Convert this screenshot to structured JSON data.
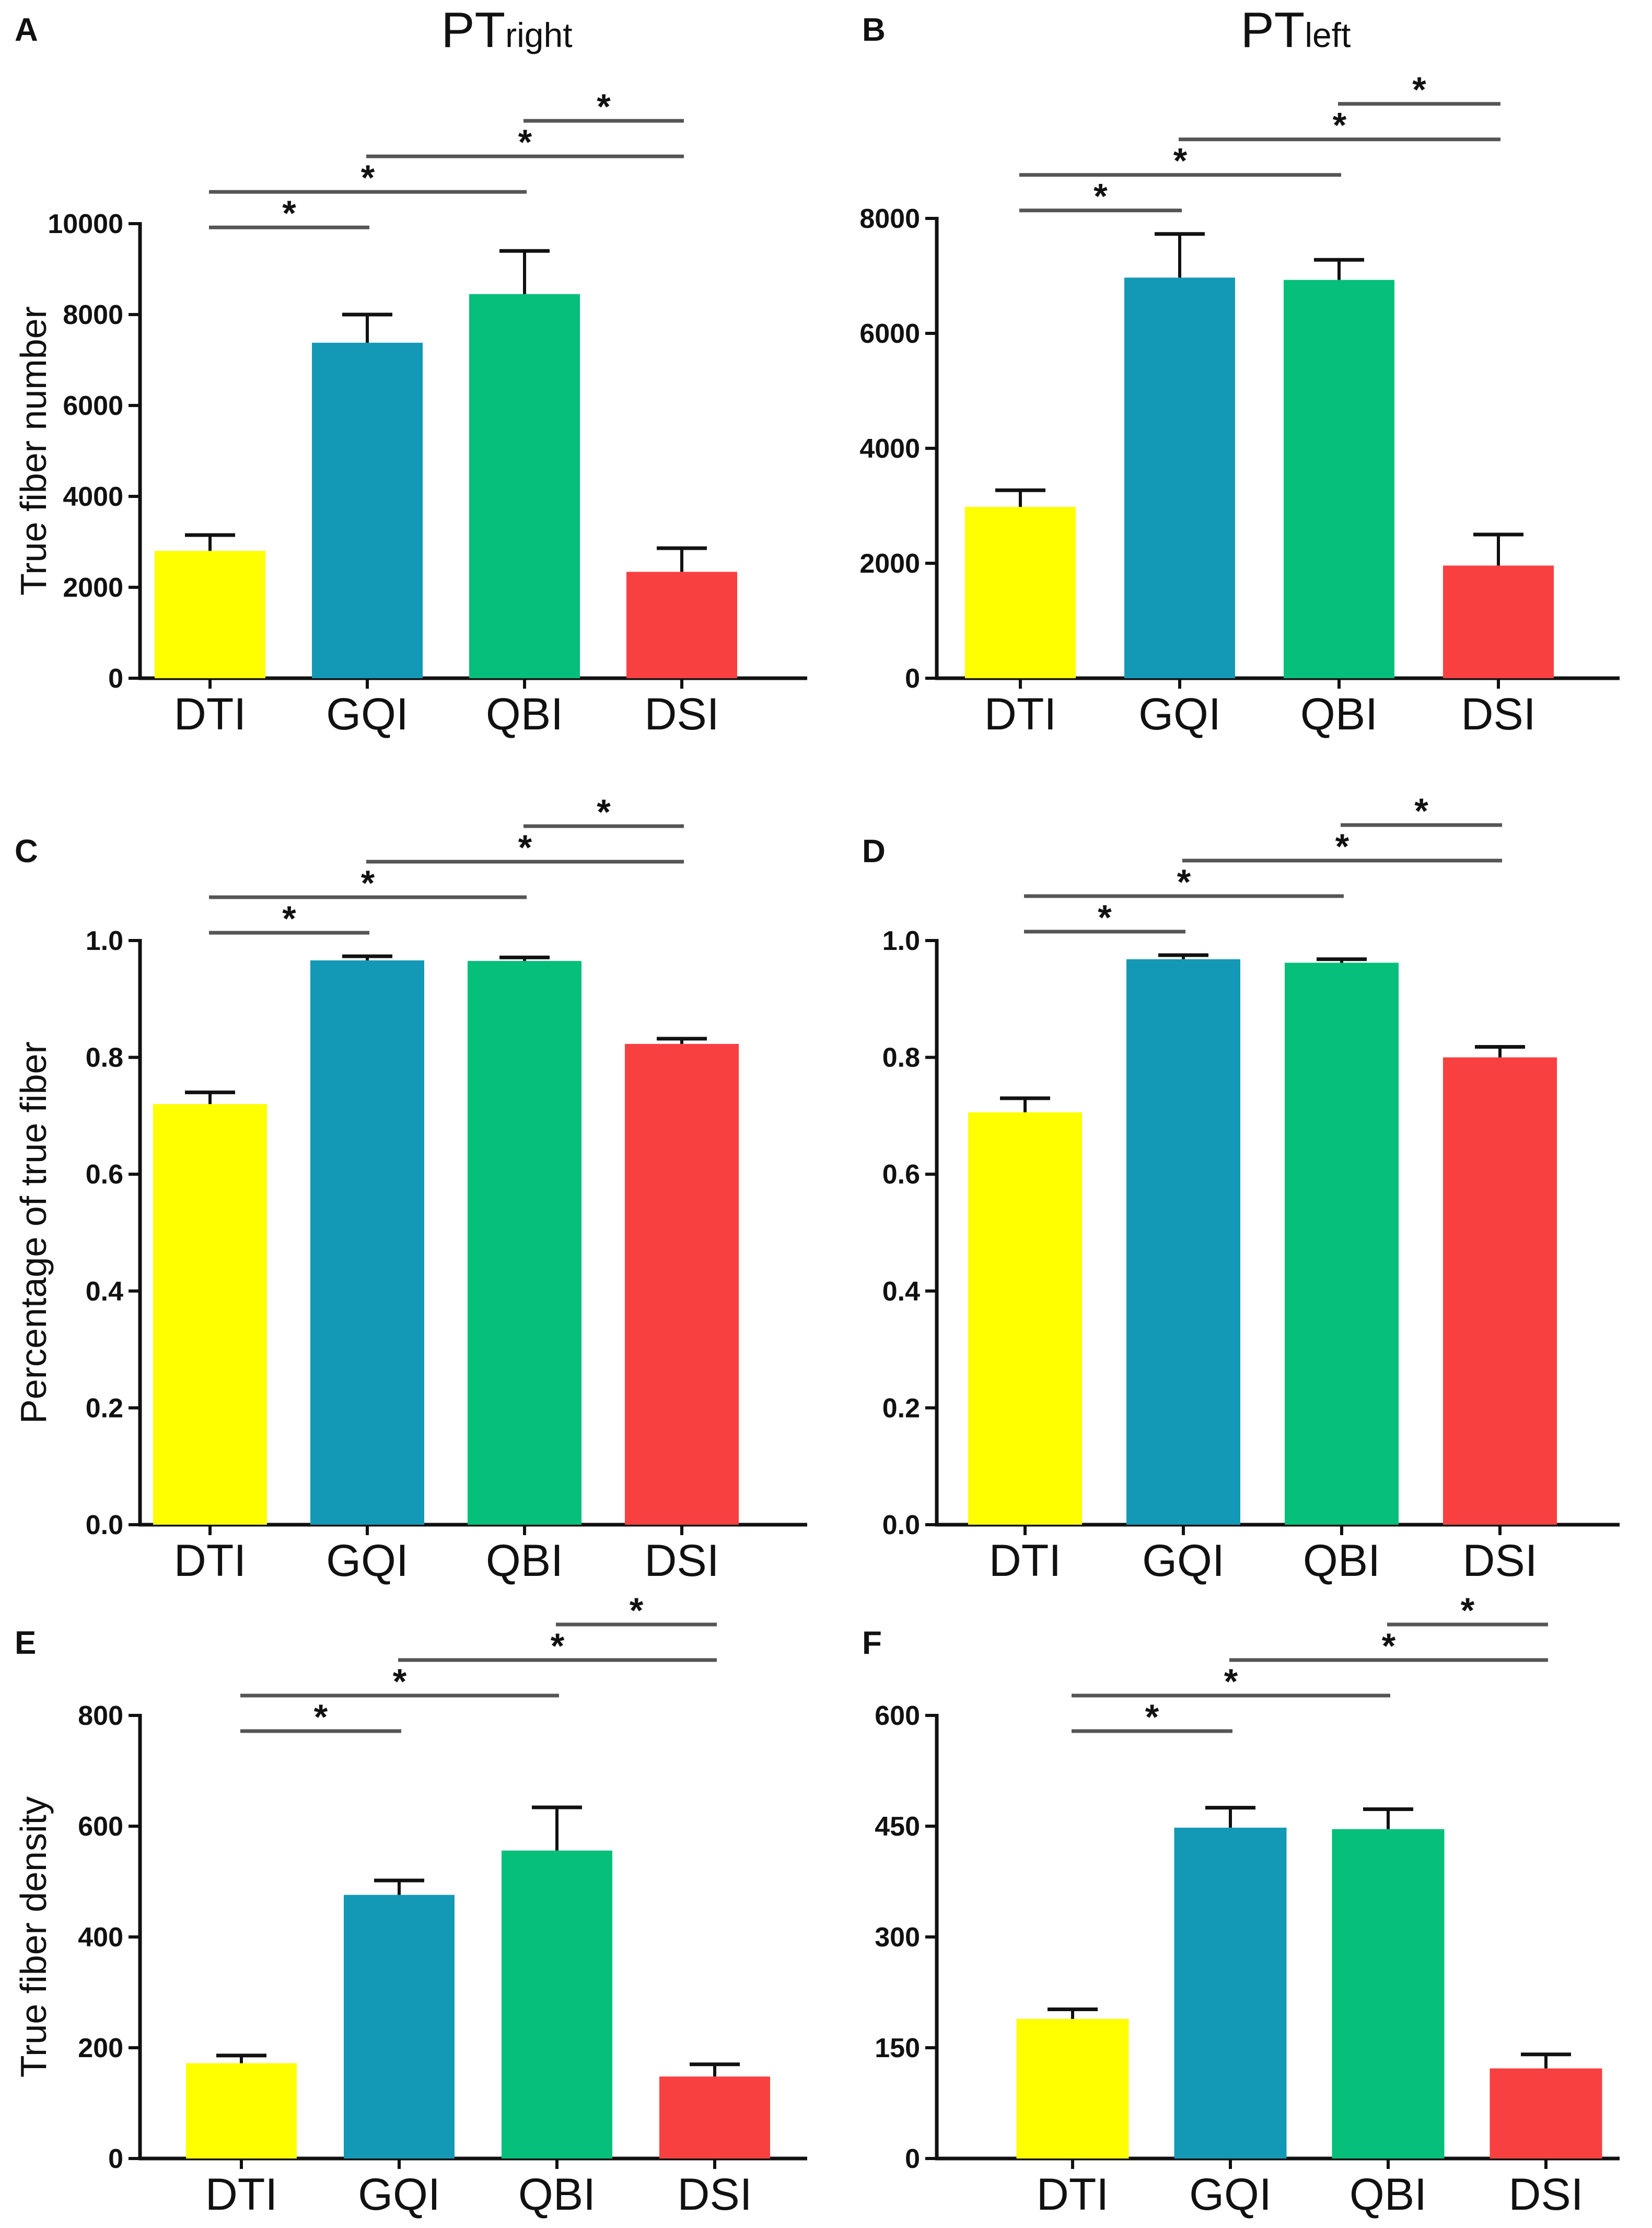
{
  "figure": {
    "columns": [
      {
        "main": "PT",
        "sub": "right"
      },
      {
        "main": "PT",
        "sub": "left"
      }
    ]
  },
  "colors": {
    "DTI": "#ffff00",
    "GQI": "#1399b6",
    "QBI": "#05bf7a",
    "DSI": "#f84040",
    "axis": "#111111",
    "bracket": "#555555"
  },
  "chart_data": [
    {
      "panel": "A",
      "type": "bar",
      "column": 0,
      "categories": [
        "DTI",
        "GQI",
        "QBI",
        "DSI"
      ],
      "values": [
        2800,
        7380,
        8450,
        2340
      ],
      "errors": [
        350,
        620,
        950,
        520
      ],
      "ylabel": "True fiber number",
      "ylim": [
        0,
        10000
      ],
      "yticks": [
        0,
        2000,
        4000,
        6000,
        8000,
        10000
      ],
      "tick_labels": [
        "0",
        "2000",
        "4000",
        "6000",
        "8000",
        "10000"
      ],
      "significance": [
        {
          "from": 0,
          "to": 1,
          "label": "*"
        },
        {
          "from": 0,
          "to": 2,
          "label": "*"
        },
        {
          "from": 1,
          "to": 3,
          "label": "*"
        },
        {
          "from": 2,
          "to": 3,
          "label": "*"
        }
      ]
    },
    {
      "panel": "B",
      "type": "bar",
      "column": 1,
      "categories": [
        "DTI",
        "GQI",
        "QBI",
        "DSI"
      ],
      "values": [
        2980,
        6970,
        6930,
        1960
      ],
      "errors": [
        290,
        760,
        350,
        540
      ],
      "ylabel": "",
      "ylim": [
        0,
        8000
      ],
      "yticks": [
        0,
        2000,
        4000,
        6000,
        8000
      ],
      "tick_labels": [
        "0",
        "2000",
        "4000",
        "6000",
        "8000"
      ],
      "significance": [
        {
          "from": 0,
          "to": 1,
          "label": "*"
        },
        {
          "from": 0,
          "to": 2,
          "label": "*"
        },
        {
          "from": 1,
          "to": 3,
          "label": "*"
        },
        {
          "from": 2,
          "to": 3,
          "label": "*"
        }
      ]
    },
    {
      "panel": "C",
      "type": "bar",
      "column": 0,
      "categories": [
        "DTI",
        "GQI",
        "QBI",
        "DSI"
      ],
      "values": [
        0.72,
        0.966,
        0.965,
        0.823
      ],
      "errors": [
        0.02,
        0.007,
        0.006,
        0.009
      ],
      "ylabel": "Percentage of true fiber",
      "ylim": [
        0,
        1.0
      ],
      "yticks": [
        0,
        0.2,
        0.4,
        0.6,
        0.8,
        1.0
      ],
      "tick_labels": [
        "0.0",
        "0.2",
        "0.4",
        "0.6",
        "0.8",
        "1.0"
      ],
      "significance": [
        {
          "from": 0,
          "to": 1,
          "label": "*"
        },
        {
          "from": 0,
          "to": 2,
          "label": "*"
        },
        {
          "from": 1,
          "to": 3,
          "label": "*"
        },
        {
          "from": 2,
          "to": 3,
          "label": "*"
        }
      ]
    },
    {
      "panel": "D",
      "type": "bar",
      "column": 1,
      "categories": [
        "DTI",
        "GQI",
        "QBI",
        "DSI"
      ],
      "values": [
        0.706,
        0.968,
        0.962,
        0.8
      ],
      "errors": [
        0.024,
        0.007,
        0.006,
        0.018
      ],
      "ylabel": "",
      "ylim": [
        0,
        1.0
      ],
      "yticks": [
        0,
        0.2,
        0.4,
        0.6,
        0.8,
        1.0
      ],
      "tick_labels": [
        "0.0",
        "0.2",
        "0.4",
        "0.6",
        "0.8",
        "1.0"
      ],
      "significance": [
        {
          "from": 0,
          "to": 1,
          "label": "*"
        },
        {
          "from": 0,
          "to": 2,
          "label": "*"
        },
        {
          "from": 1,
          "to": 3,
          "label": "*"
        },
        {
          "from": 2,
          "to": 3,
          "label": "*"
        }
      ]
    },
    {
      "panel": "E",
      "type": "bar",
      "column": 0,
      "categories": [
        "DTI",
        "GQI",
        "QBI",
        "DSI"
      ],
      "values": [
        172,
        476,
        556,
        148
      ],
      "errors": [
        14,
        26,
        78,
        22
      ],
      "ylabel": "True fiber density",
      "ylim": [
        0,
        800
      ],
      "yticks": [
        0,
        200,
        400,
        600,
        800
      ],
      "tick_labels": [
        "0",
        "200",
        "400",
        "600",
        "800"
      ],
      "significance": [
        {
          "from": 0,
          "to": 1,
          "label": "*"
        },
        {
          "from": 0,
          "to": 2,
          "label": "*"
        },
        {
          "from": 1,
          "to": 3,
          "label": "*"
        },
        {
          "from": 2,
          "to": 3,
          "label": "*"
        }
      ]
    },
    {
      "panel": "F",
      "type": "bar",
      "column": 1,
      "categories": [
        "DTI",
        "GQI",
        "QBI",
        "DSI"
      ],
      "values": [
        189,
        448,
        446,
        122
      ],
      "errors": [
        13,
        27,
        27,
        19
      ],
      "ylabel": "",
      "ylim": [
        0,
        600
      ],
      "yticks": [
        0,
        150,
        300,
        450,
        600
      ],
      "tick_labels": [
        "0",
        "150",
        "300",
        "450",
        "600"
      ],
      "significance": [
        {
          "from": 0,
          "to": 1,
          "label": "*"
        },
        {
          "from": 0,
          "to": 2,
          "label": "*"
        },
        {
          "from": 1,
          "to": 3,
          "label": "*"
        },
        {
          "from": 2,
          "to": 3,
          "label": "*"
        }
      ]
    }
  ]
}
